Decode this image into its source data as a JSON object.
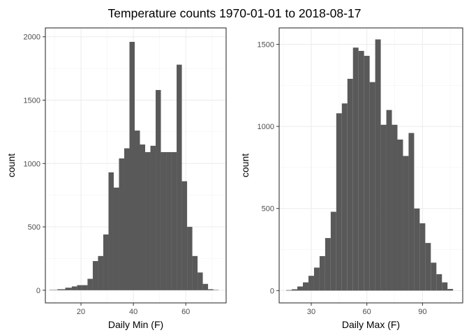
{
  "title": "Temperature counts 1970-01-01 to 2018-08-17",
  "colors": {
    "bar": "#595959",
    "grid": "#ebebeb",
    "frame": "#333333"
  },
  "chart_data": [
    {
      "type": "bar",
      "xlabel": "Daily Min (F)",
      "ylabel": "count",
      "xlim": [
        6.4,
        75.4
      ],
      "ylim": [
        -100,
        2070
      ],
      "xticks": [
        20,
        40,
        60
      ],
      "yticks": [
        0,
        500,
        1000,
        1500,
        2000
      ],
      "grid": true,
      "bins": [
        {
          "x": 9.5,
          "count": 2
        },
        {
          "x": 12.5,
          "count": 8
        },
        {
          "x": 15.5,
          "count": 20
        },
        {
          "x": 17.5,
          "count": 30
        },
        {
          "x": 19.5,
          "count": 40
        },
        {
          "x": 21.5,
          "count": 40
        },
        {
          "x": 23.5,
          "count": 90
        },
        {
          "x": 25.5,
          "count": 230
        },
        {
          "x": 27.5,
          "count": 270
        },
        {
          "x": 29.5,
          "count": 440
        },
        {
          "x": 31.5,
          "count": 930
        },
        {
          "x": 33.5,
          "count": 810
        },
        {
          "x": 35.5,
          "count": 1040
        },
        {
          "x": 37.5,
          "count": 1120
        },
        {
          "x": 39.5,
          "count": 1960
        },
        {
          "x": 41.5,
          "count": 1260
        },
        {
          "x": 43.5,
          "count": 1150
        },
        {
          "x": 45.5,
          "count": 1090
        },
        {
          "x": 47.5,
          "count": 1140
        },
        {
          "x": 49.5,
          "count": 1580
        },
        {
          "x": 51.5,
          "count": 1090
        },
        {
          "x": 53.5,
          "count": 1090
        },
        {
          "x": 55.5,
          "count": 1090
        },
        {
          "x": 57.5,
          "count": 1780
        },
        {
          "x": 59.5,
          "count": 860
        },
        {
          "x": 61.5,
          "count": 500
        },
        {
          "x": 63.5,
          "count": 270
        },
        {
          "x": 65.5,
          "count": 140
        },
        {
          "x": 67.5,
          "count": 50
        },
        {
          "x": 69.5,
          "count": 8
        },
        {
          "x": 71.5,
          "count": 2
        }
      ]
    },
    {
      "type": "bar",
      "xlabel": "Daily Max (F)",
      "ylabel": "count",
      "xlim": [
        12.7,
        111.7
      ],
      "ylim": [
        -75,
        1600
      ],
      "xticks": [
        30,
        60,
        90
      ],
      "yticks": [
        0,
        500,
        1000,
        1500
      ],
      "grid": true,
      "bins": [
        {
          "x": 18.0,
          "count": 3
        },
        {
          "x": 21.0,
          "count": 8
        },
        {
          "x": 24.0,
          "count": 25
        },
        {
          "x": 27.0,
          "count": 50
        },
        {
          "x": 30.0,
          "count": 90
        },
        {
          "x": 33.0,
          "count": 140
        },
        {
          "x": 36.0,
          "count": 210
        },
        {
          "x": 39.0,
          "count": 320
        },
        {
          "x": 42.0,
          "count": 480
        },
        {
          "x": 45.0,
          "count": 1080
        },
        {
          "x": 48.0,
          "count": 1140
        },
        {
          "x": 51.0,
          "count": 1290
        },
        {
          "x": 54.0,
          "count": 1480
        },
        {
          "x": 57.0,
          "count": 1460
        },
        {
          "x": 60.0,
          "count": 1430
        },
        {
          "x": 63.0,
          "count": 1270
        },
        {
          "x": 66.0,
          "count": 1530
        },
        {
          "x": 69.0,
          "count": 1010
        },
        {
          "x": 72.0,
          "count": 1100
        },
        {
          "x": 75.0,
          "count": 1010
        },
        {
          "x": 78.0,
          "count": 920
        },
        {
          "x": 81.0,
          "count": 820
        },
        {
          "x": 84.0,
          "count": 960
        },
        {
          "x": 87.0,
          "count": 500
        },
        {
          "x": 90.0,
          "count": 410
        },
        {
          "x": 93.0,
          "count": 290
        },
        {
          "x": 96.0,
          "count": 170
        },
        {
          "x": 99.0,
          "count": 100
        },
        {
          "x": 102.0,
          "count": 50
        },
        {
          "x": 105.0,
          "count": 10
        }
      ]
    }
  ]
}
